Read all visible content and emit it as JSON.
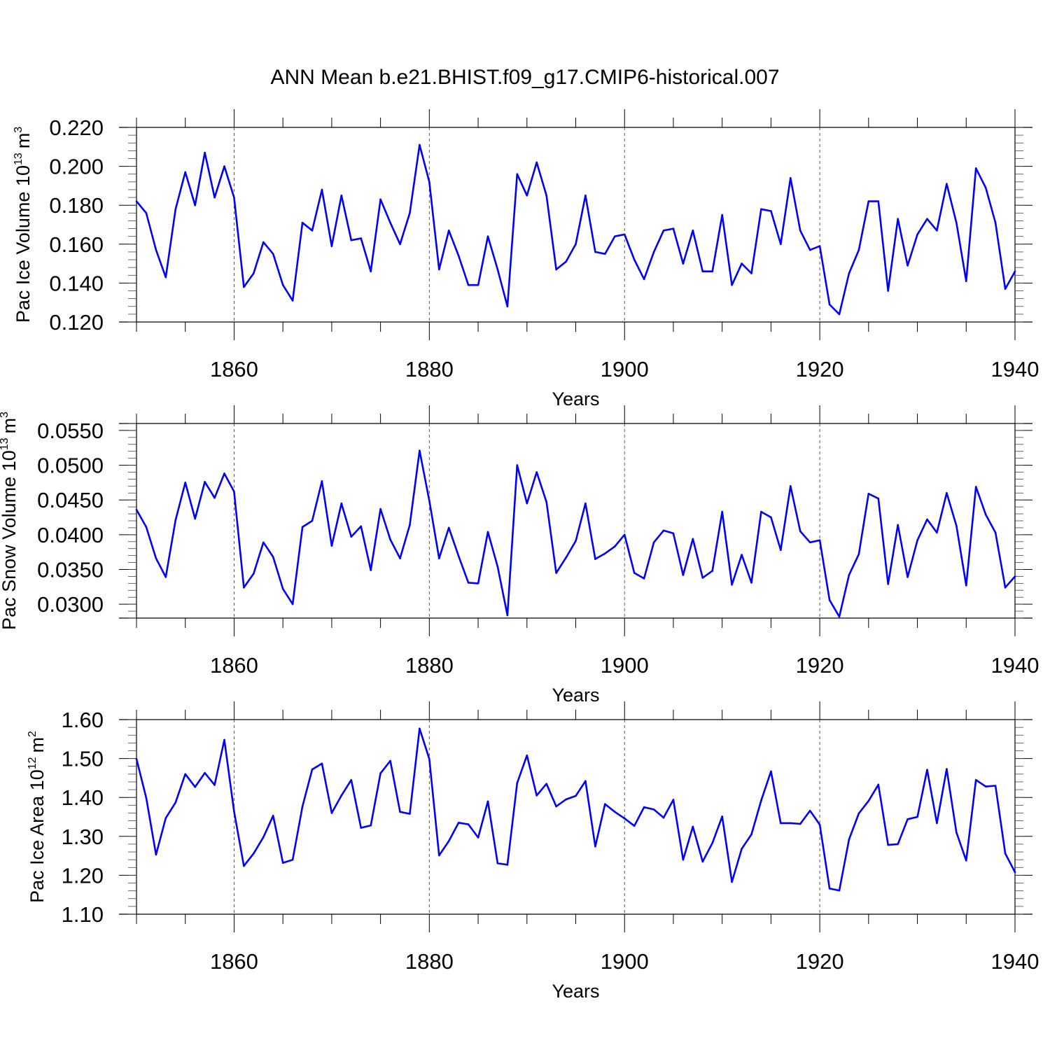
{
  "figure": {
    "title": "ANN Mean b.e21.BHIST.f09_g17.CMIP6-historical.007",
    "line_color": "#0000ff",
    "axis_color": "#000000"
  },
  "chart_data": [
    {
      "type": "line",
      "title": "",
      "xlabel": "Years",
      "ylabel": "Pac Ice Volume 10",
      "ylabel_exp": "13",
      "ylabel_unit": "m",
      "ylabel_unit_exp": "3",
      "xlim": [
        1850,
        1940
      ],
      "ylim": [
        0.12,
        0.22
      ],
      "ticks": [
        "0.120",
        "0.140",
        "0.160",
        "0.180",
        "0.200",
        "0.220"
      ],
      "tick_values": [
        0.12,
        0.14,
        0.16,
        0.18,
        0.2,
        0.22
      ],
      "x_ticks": [
        "1860",
        "1880",
        "1900",
        "1920",
        "1940"
      ],
      "x_tick_values": [
        1860,
        1880,
        1900,
        1920,
        1940
      ],
      "x_start": 1850,
      "series": [
        {
          "name": "Pac Ice Volume",
          "values": [
            0.182,
            0.176,
            0.157,
            0.143,
            0.178,
            0.197,
            0.18,
            0.207,
            0.184,
            0.2,
            0.184,
            0.138,
            0.145,
            0.161,
            0.155,
            0.139,
            0.131,
            0.171,
            0.167,
            0.188,
            0.159,
            0.185,
            0.162,
            0.163,
            0.146,
            0.183,
            0.171,
            0.16,
            0.176,
            0.211,
            0.192,
            0.147,
            0.167,
            0.154,
            0.139,
            0.139,
            0.164,
            0.147,
            0.128,
            0.196,
            0.185,
            0.202,
            0.185,
            0.147,
            0.151,
            0.16,
            0.185,
            0.156,
            0.155,
            0.164,
            0.165,
            0.152,
            0.142,
            0.156,
            0.167,
            0.168,
            0.15,
            0.167,
            0.146,
            0.146,
            0.175,
            0.139,
            0.15,
            0.145,
            0.178,
            0.177,
            0.16,
            0.194,
            0.167,
            0.157,
            0.159,
            0.129,
            0.124,
            0.145,
            0.157,
            0.182,
            0.182,
            0.136,
            0.173,
            0.149,
            0.165,
            0.173,
            0.167,
            0.191,
            0.171,
            0.141,
            0.199,
            0.189,
            0.171,
            0.137,
            0.146
          ]
        }
      ]
    },
    {
      "type": "line",
      "title": "",
      "xlabel": "Years",
      "ylabel": "Pac Snow Volume 10",
      "ylabel_exp": "13",
      "ylabel_unit": "m",
      "ylabel_unit_exp": "3",
      "xlim": [
        1850,
        1940
      ],
      "ylim": [
        0.028,
        0.056
      ],
      "ticks": [
        "0.0300",
        "0.0350",
        "0.0400",
        "0.0450",
        "0.0500",
        "0.0550"
      ],
      "tick_values": [
        0.03,
        0.035,
        0.04,
        0.045,
        0.05,
        0.055
      ],
      "x_ticks": [
        "1860",
        "1880",
        "1900",
        "1920",
        "1940"
      ],
      "x_tick_values": [
        1860,
        1880,
        1900,
        1920,
        1940
      ],
      "x_start": 1850,
      "series": [
        {
          "name": "Pac Snow Volume",
          "values": [
            0.0436,
            0.0411,
            0.0366,
            0.0339,
            0.0421,
            0.0475,
            0.0423,
            0.0476,
            0.0453,
            0.0488,
            0.0462,
            0.0324,
            0.0344,
            0.0389,
            0.0368,
            0.0322,
            0.03,
            0.0411,
            0.042,
            0.0477,
            0.0384,
            0.0445,
            0.0397,
            0.0412,
            0.0349,
            0.0437,
            0.0393,
            0.0366,
            0.0414,
            0.0521,
            0.0449,
            0.0366,
            0.041,
            0.0369,
            0.0331,
            0.033,
            0.0404,
            0.0354,
            0.0284,
            0.05,
            0.0445,
            0.049,
            0.0447,
            0.0345,
            0.0367,
            0.0391,
            0.0445,
            0.0365,
            0.0373,
            0.0383,
            0.04,
            0.0345,
            0.0337,
            0.0389,
            0.0406,
            0.0402,
            0.0342,
            0.0394,
            0.0338,
            0.0348,
            0.0433,
            0.0328,
            0.0371,
            0.0331,
            0.0433,
            0.0425,
            0.0378,
            0.047,
            0.0405,
            0.0389,
            0.0392,
            0.0306,
            0.0282,
            0.0342,
            0.0372,
            0.0459,
            0.0452,
            0.0329,
            0.0414,
            0.0339,
            0.0392,
            0.0422,
            0.0403,
            0.046,
            0.0413,
            0.0327,
            0.0469,
            0.0429,
            0.0403,
            0.0324,
            0.034
          ]
        }
      ]
    },
    {
      "type": "line",
      "title": "",
      "xlabel": "Years",
      "ylabel": "Pac Ice Area 10",
      "ylabel_exp": "12",
      "ylabel_unit": "m",
      "ylabel_unit_exp": "2",
      "xlim": [
        1850,
        1940
      ],
      "ylim": [
        1.1,
        1.6
      ],
      "ticks": [
        "1.10",
        "1.20",
        "1.30",
        "1.40",
        "1.50",
        "1.60"
      ],
      "tick_values": [
        1.1,
        1.2,
        1.3,
        1.4,
        1.5,
        1.6
      ],
      "x_ticks": [
        "1860",
        "1880",
        "1900",
        "1920",
        "1940"
      ],
      "x_tick_values": [
        1860,
        1880,
        1900,
        1920,
        1940
      ],
      "x_start": 1850,
      "series": [
        {
          "name": "Pac Ice Area",
          "values": [
            1.499,
            1.399,
            1.253,
            1.347,
            1.387,
            1.46,
            1.427,
            1.463,
            1.432,
            1.548,
            1.364,
            1.224,
            1.256,
            1.298,
            1.353,
            1.232,
            1.24,
            1.377,
            1.472,
            1.487,
            1.36,
            1.405,
            1.445,
            1.322,
            1.328,
            1.462,
            1.494,
            1.363,
            1.358,
            1.577,
            1.499,
            1.251,
            1.288,
            1.335,
            1.331,
            1.297,
            1.39,
            1.231,
            1.227,
            1.437,
            1.508,
            1.405,
            1.435,
            1.377,
            1.395,
            1.404,
            1.442,
            1.274,
            1.383,
            1.363,
            1.346,
            1.327,
            1.375,
            1.369,
            1.348,
            1.394,
            1.24,
            1.325,
            1.235,
            1.283,
            1.351,
            1.183,
            1.268,
            1.305,
            1.392,
            1.467,
            1.334,
            1.334,
            1.332,
            1.366,
            1.33,
            1.166,
            1.161,
            1.292,
            1.359,
            1.391,
            1.433,
            1.278,
            1.28,
            1.344,
            1.35,
            1.471,
            1.334,
            1.473,
            1.31,
            1.238,
            1.445,
            1.428,
            1.43,
            1.256,
            1.208
          ]
        }
      ]
    }
  ]
}
